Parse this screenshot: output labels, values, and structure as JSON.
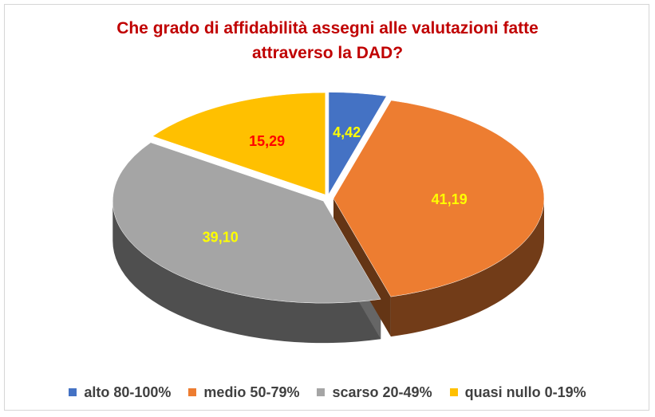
{
  "colors": {
    "title": "#c00000",
    "legend_text": "#404040"
  },
  "chart_data": {
    "type": "pie",
    "style": "3d-exploded-tilted",
    "title": "Che grado di affidabilità assegni alle valutazioni fatte attraverso la DAD?",
    "title_lines": [
      "Che grado di affidabilità assegni alle valutazioni fatte",
      "attraverso la DAD?"
    ],
    "legend_position": "bottom",
    "slices": [
      {
        "label": "alto 80-100%",
        "value": 4.42,
        "value_label": "4,42",
        "color": "#4472c4",
        "label_color": "#ffff00"
      },
      {
        "label": "medio 50-79%",
        "value": 41.19,
        "value_label": "41,19",
        "color": "#ed7d31",
        "label_color": "#ffff00"
      },
      {
        "label": "scarso 20-49%",
        "value": 39.1,
        "value_label": "39,10",
        "color": "#a5a5a5",
        "label_color": "#ffff00"
      },
      {
        "label": "quasi nullo 0-19%",
        "value": 15.29,
        "value_label": "15,29",
        "color": "#ffc000",
        "label_color": "#ff0000"
      }
    ]
  }
}
